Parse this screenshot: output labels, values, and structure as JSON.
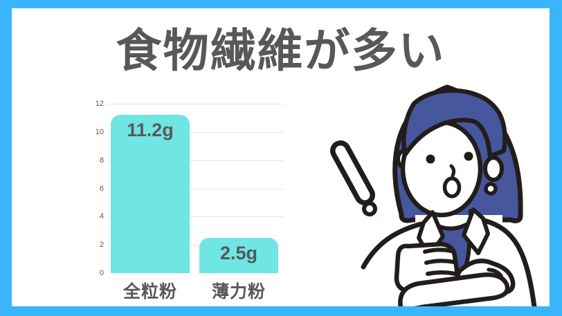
{
  "title": "食物繊維が多い",
  "chart_data": {
    "type": "bar",
    "title": "食物繊維が多い",
    "categories": [
      "全粒粉",
      "薄力粉"
    ],
    "values": [
      11.2,
      2.5
    ],
    "value_labels": [
      "11.2g",
      "2.5g"
    ],
    "unit": "g",
    "xlabel": "",
    "ylabel": "",
    "ylim": [
      0,
      12
    ],
    "yticks": [
      0,
      2,
      4,
      6,
      8,
      10,
      12
    ],
    "grid": true,
    "legend": false,
    "bar_corner": "rounded-top"
  },
  "colors": {
    "frame_border": "#3ab5fc",
    "bar_fill": "#6fe5e4",
    "text_dark": "#595757",
    "tick_text": "#555555",
    "gridline": "#e4e4e4",
    "illustration_blue": "#46579e",
    "outline_ink": "#221d1a"
  },
  "illustration": {
    "name": "surprised-woman-with-exclamation-mark"
  }
}
